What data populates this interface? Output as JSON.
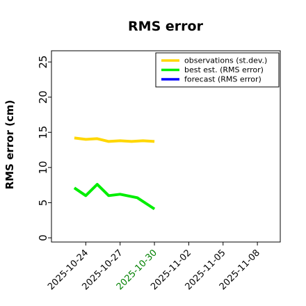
{
  "chart_data": {
    "type": "line",
    "title": "RMS error",
    "xlabel": "",
    "ylabel": "RMS error (cm)",
    "ylim": [
      0,
      26
    ],
    "y_ticks": [
      0,
      5,
      10,
      15,
      20,
      25
    ],
    "x_range": [
      "2025-10-21T00:00",
      "2025-11-10T00:00"
    ],
    "x_ticks": [
      {
        "label": "2025-10-24",
        "value": "2025-10-24",
        "color": "#000000"
      },
      {
        "label": "2025-10-27",
        "value": "2025-10-27",
        "color": "#000000"
      },
      {
        "label": "2025-10-30",
        "value": "2025-10-30",
        "color": "#008000"
      },
      {
        "label": "2025-11-02",
        "value": "2025-11-02",
        "color": "#000000"
      },
      {
        "label": "2025-11-05",
        "value": "2025-11-05",
        "color": "#000000"
      },
      {
        "label": "2025-11-08",
        "value": "2025-11-08",
        "color": "#000000"
      }
    ],
    "grid": false,
    "legend_position": "top-right",
    "series": [
      {
        "name": "observations (st.dev.)",
        "color": "#FFD700",
        "x": [
          "2025-10-23T00:00",
          "2025-10-24T00:00",
          "2025-10-25T00:00",
          "2025-10-26T00:00",
          "2025-10-27T00:00",
          "2025-10-28T00:00",
          "2025-10-29T00:00",
          "2025-10-30T00:00"
        ],
        "y": [
          14.2,
          14.0,
          14.1,
          13.7,
          13.8,
          13.7,
          13.8,
          13.7
        ]
      },
      {
        "name": "best est. (RMS error)",
        "color": "#00EE00",
        "x": [
          "2025-10-23T00:00",
          "2025-10-24T00:00",
          "2025-10-25T00:00",
          "2025-10-26T00:00",
          "2025-10-27T00:00",
          "2025-10-28T12:00",
          "2025-10-30T00:00"
        ],
        "y": [
          7.1,
          6.0,
          7.6,
          6.0,
          6.2,
          5.7,
          4.1
        ]
      },
      {
        "name": "forecast (RMS error)",
        "color": "#0000FF",
        "x": [],
        "y": []
      }
    ]
  }
}
